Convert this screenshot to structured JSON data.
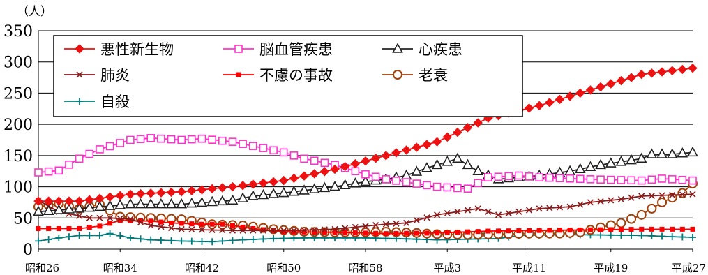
{
  "chart_data": {
    "type": "line",
    "unit_label": "（人）",
    "x_tick_labels": [
      "昭和26",
      "昭和34",
      "昭和42",
      "昭和50",
      "昭和58",
      "平成3",
      "平成11",
      "平成19",
      "平成27"
    ],
    "x_start_year": 1951,
    "x_end_year": 2015,
    "ylim": [
      0,
      350
    ],
    "y_ticks": [
      0,
      50,
      100,
      150,
      200,
      250,
      300,
      350
    ],
    "grid": "horizontal",
    "legend_position": "top-left",
    "series": [
      {
        "name": "悪性新生物",
        "color": "#ee1111",
        "marker": "diamond",
        "anchors": [
          [
            1951,
            77
          ],
          [
            1955,
            77
          ],
          [
            1960,
            88
          ],
          [
            1965,
            92
          ],
          [
            1970,
            100
          ],
          [
            1975,
            110
          ],
          [
            1980,
            128
          ],
          [
            1985,
            150
          ],
          [
            1990,
            172
          ],
          [
            1995,
            210
          ],
          [
            2000,
            230
          ],
          [
            2005,
            255
          ],
          [
            2010,
            280
          ],
          [
            2015,
            290
          ]
        ]
      },
      {
        "name": "脳血管疾患",
        "color": "#ff33cc",
        "marker": "square-open",
        "anchors": [
          [
            1951,
            123
          ],
          [
            1953,
            126
          ],
          [
            1955,
            145
          ],
          [
            1957,
            160
          ],
          [
            1960,
            175
          ],
          [
            1962,
            178
          ],
          [
            1965,
            175
          ],
          [
            1967,
            177
          ],
          [
            1970,
            172
          ],
          [
            1973,
            162
          ],
          [
            1975,
            155
          ],
          [
            1977,
            145
          ],
          [
            1980,
            135
          ],
          [
            1983,
            120
          ],
          [
            1985,
            112
          ],
          [
            1988,
            105
          ],
          [
            1990,
            100
          ],
          [
            1993,
            97
          ],
          [
            1995,
            115
          ],
          [
            1998,
            118
          ],
          [
            2000,
            115
          ],
          [
            2005,
            112
          ],
          [
            2010,
            110
          ],
          [
            2012,
            113
          ],
          [
            2015,
            110
          ]
        ]
      },
      {
        "name": "心疾患",
        "color": "#222222",
        "marker": "triangle-open",
        "anchors": [
          [
            1951,
            60
          ],
          [
            1955,
            65
          ],
          [
            1960,
            72
          ],
          [
            1965,
            72
          ],
          [
            1970,
            78
          ],
          [
            1972,
            85
          ],
          [
            1975,
            90
          ],
          [
            1980,
            100
          ],
          [
            1983,
            108
          ],
          [
            1985,
            112
          ],
          [
            1987,
            118
          ],
          [
            1989,
            130
          ],
          [
            1992,
            145
          ],
          [
            1994,
            125
          ],
          [
            1996,
            112
          ],
          [
            1998,
            115
          ],
          [
            2000,
            118
          ],
          [
            2003,
            125
          ],
          [
            2006,
            135
          ],
          [
            2008,
            140
          ],
          [
            2010,
            145
          ],
          [
            2011,
            152
          ],
          [
            2013,
            152
          ],
          [
            2015,
            155
          ]
        ]
      },
      {
        "name": "肺炎",
        "color": "#8b1a1a",
        "marker": "cross",
        "anchors": [
          [
            1951,
            78
          ],
          [
            1953,
            60
          ],
          [
            1956,
            50
          ],
          [
            1958,
            50
          ],
          [
            1960,
            48
          ],
          [
            1962,
            38
          ],
          [
            1965,
            32
          ],
          [
            1970,
            30
          ],
          [
            1973,
            30
          ],
          [
            1976,
            30
          ],
          [
            1980,
            32
          ],
          [
            1983,
            37
          ],
          [
            1985,
            40
          ],
          [
            1987,
            42
          ],
          [
            1990,
            55
          ],
          [
            1992,
            60
          ],
          [
            1994,
            65
          ],
          [
            1996,
            55
          ],
          [
            1998,
            60
          ],
          [
            2000,
            65
          ],
          [
            2003,
            68
          ],
          [
            2005,
            75
          ],
          [
            2008,
            80
          ],
          [
            2010,
            85
          ],
          [
            2015,
            88
          ]
        ]
      },
      {
        "name": "不慮の事故",
        "color": "#ff0000",
        "marker": "square-filled",
        "anchors": [
          [
            1951,
            33
          ],
          [
            1955,
            33
          ],
          [
            1957,
            37
          ],
          [
            1959,
            46
          ],
          [
            1962,
            45
          ],
          [
            1964,
            42
          ],
          [
            1967,
            40
          ],
          [
            1969,
            40
          ],
          [
            1972,
            33
          ],
          [
            1975,
            28
          ],
          [
            1980,
            27
          ],
          [
            1985,
            25
          ],
          [
            1990,
            26
          ],
          [
            1995,
            29
          ],
          [
            2000,
            30
          ],
          [
            2005,
            31
          ],
          [
            2010,
            32
          ],
          [
            2015,
            32
          ]
        ]
      },
      {
        "name": "老衰",
        "color": "#a0400a",
        "marker": "circle-open",
        "anchors": [
          [
            1951,
            68
          ],
          [
            1953,
            73
          ],
          [
            1955,
            65
          ],
          [
            1957,
            72
          ],
          [
            1959,
            52
          ],
          [
            1962,
            50
          ],
          [
            1965,
            48
          ],
          [
            1968,
            40
          ],
          [
            1971,
            38
          ],
          [
            1974,
            32
          ],
          [
            1977,
            28
          ],
          [
            1980,
            27
          ],
          [
            1983,
            27
          ],
          [
            1985,
            28
          ],
          [
            1988,
            26
          ],
          [
            1990,
            24
          ],
          [
            1993,
            23
          ],
          [
            1996,
            24
          ],
          [
            1999,
            25
          ],
          [
            2002,
            25
          ],
          [
            2004,
            27
          ],
          [
            2006,
            35
          ],
          [
            2008,
            42
          ],
          [
            2010,
            55
          ],
          [
            2012,
            75
          ],
          [
            2014,
            90
          ],
          [
            2015,
            105
          ]
        ]
      },
      {
        "name": "自殺",
        "color": "#007b7b",
        "marker": "plus",
        "anchors": [
          [
            1951,
            13
          ],
          [
            1953,
            18
          ],
          [
            1955,
            22
          ],
          [
            1957,
            22
          ],
          [
            1958,
            25
          ],
          [
            1960,
            18
          ],
          [
            1962,
            15
          ],
          [
            1965,
            13
          ],
          [
            1968,
            12
          ],
          [
            1971,
            15
          ],
          [
            1974,
            17
          ],
          [
            1977,
            18
          ],
          [
            1980,
            18
          ],
          [
            1983,
            18
          ],
          [
            1986,
            17
          ],
          [
            1990,
            15
          ],
          [
            1993,
            16
          ],
          [
            1996,
            17
          ],
          [
            1998,
            22
          ],
          [
            2002,
            23
          ],
          [
            2005,
            23
          ],
          [
            2010,
            22
          ],
          [
            2013,
            20
          ],
          [
            2015,
            19
          ]
        ]
      }
    ]
  }
}
